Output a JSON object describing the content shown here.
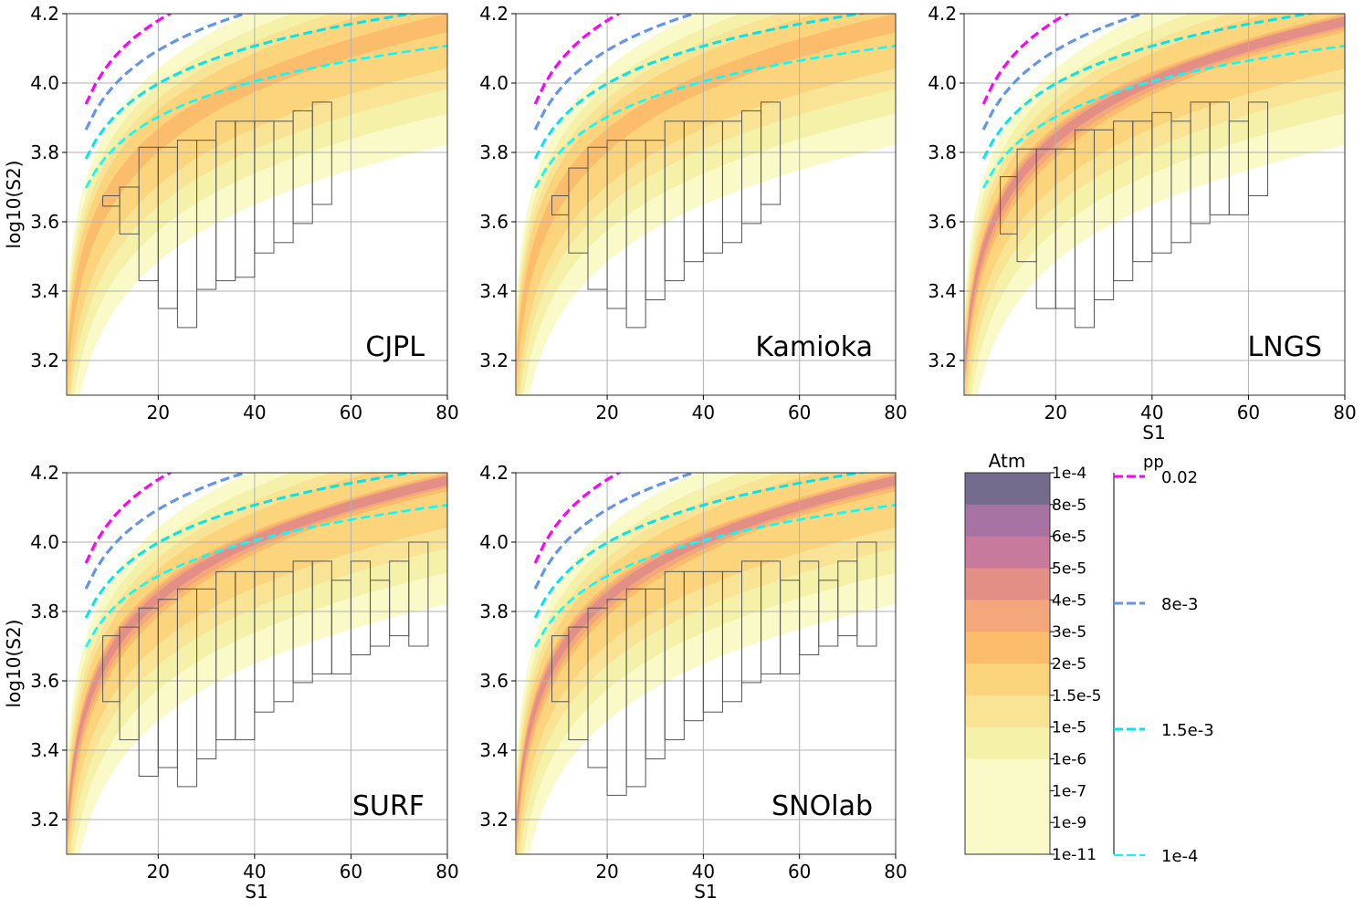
{
  "colors": {
    "contour_fills": [
      "#fafac8",
      "#f5f1a8",
      "#f9e496",
      "#fbd47c",
      "#fbbd6c",
      "#f4a77b",
      "#e48f85",
      "#c77a9c",
      "#a773a2",
      "#756b8c"
    ],
    "pp_lines": [
      "#ff00ff",
      "#6495ed",
      "#00e5ee",
      "#00ffff"
    ],
    "box_stroke": "#555555",
    "grid": "#b0b0b0"
  },
  "colorbar": {
    "title": "Atm",
    "levels": [
      "1e-4",
      "8e-5",
      "6e-5",
      "5e-5",
      "4e-5",
      "3e-5",
      "2e-5",
      "1.5e-5",
      "1e-5",
      "1e-6",
      "1e-7",
      "1e-9",
      "1e-11"
    ]
  },
  "line_legend": {
    "title": "pp",
    "entries": [
      {
        "label": "0.02",
        "color": "#ff00ff",
        "width": "heavy"
      },
      {
        "label": "8e-3",
        "color": "#6495ed",
        "width": "heavy"
      },
      {
        "label": "1.5e-3",
        "color": "#00e5ee",
        "width": "heavy"
      },
      {
        "label": "1e-4",
        "color": "#00ffff",
        "width": "light"
      }
    ]
  },
  "chart_data": [
    {
      "type": "heatmap",
      "panel": "CJPL",
      "xlabel": "",
      "ylabel": "log10(S2)",
      "xlim": [
        1,
        80
      ],
      "ylim": [
        3.1,
        4.2
      ],
      "xticks": [
        "20",
        "40",
        "60",
        "80"
      ],
      "yticks": [
        "3.2",
        "3.4",
        "3.6",
        "3.8",
        "4.0",
        "4.2"
      ],
      "peak_level": 4,
      "boxes": [
        {
          "x0": 8.5,
          "x1": 12.0,
          "y0": 3.645,
          "y1": 3.675
        },
        {
          "x0": 12.0,
          "x1": 16.0,
          "y0": 3.565,
          "y1": 3.7
        },
        {
          "x0": 16.0,
          "x1": 20.0,
          "y0": 3.43,
          "y1": 3.815
        },
        {
          "x0": 20.0,
          "x1": 24.0,
          "y0": 3.35,
          "y1": 3.815
        },
        {
          "x0": 24.0,
          "x1": 28.0,
          "y0": 3.295,
          "y1": 3.835
        },
        {
          "x0": 28.0,
          "x1": 32.0,
          "y0": 3.405,
          "y1": 3.835
        },
        {
          "x0": 32.0,
          "x1": 36.0,
          "y0": 3.43,
          "y1": 3.89
        },
        {
          "x0": 36.0,
          "x1": 40.0,
          "y0": 3.44,
          "y1": 3.89
        },
        {
          "x0": 40.0,
          "x1": 44.0,
          "y0": 3.51,
          "y1": 3.89
        },
        {
          "x0": 44.0,
          "x1": 48.0,
          "y0": 3.54,
          "y1": 3.89
        },
        {
          "x0": 48.0,
          "x1": 52.0,
          "y0": 3.595,
          "y1": 3.92
        },
        {
          "x0": 52.0,
          "x1": 56.0,
          "y0": 3.65,
          "y1": 3.945
        }
      ]
    },
    {
      "type": "heatmap",
      "panel": "Kamioka",
      "xlabel": "",
      "ylabel": "",
      "xlim": [
        1,
        80
      ],
      "ylim": [
        3.1,
        4.2
      ],
      "xticks": [
        "20",
        "40",
        "60",
        "80"
      ],
      "yticks": [
        "3.2",
        "3.4",
        "3.6",
        "3.8",
        "4.0",
        "4.2"
      ],
      "peak_level": 4,
      "boxes": [
        {
          "x0": 8.5,
          "x1": 12.0,
          "y0": 3.62,
          "y1": 3.675
        },
        {
          "x0": 12.0,
          "x1": 16.0,
          "y0": 3.51,
          "y1": 3.755
        },
        {
          "x0": 16.0,
          "x1": 20.0,
          "y0": 3.405,
          "y1": 3.815
        },
        {
          "x0": 20.0,
          "x1": 24.0,
          "y0": 3.35,
          "y1": 3.835
        },
        {
          "x0": 24.0,
          "x1": 28.0,
          "y0": 3.295,
          "y1": 3.835
        },
        {
          "x0": 28.0,
          "x1": 32.0,
          "y0": 3.375,
          "y1": 3.835
        },
        {
          "x0": 32.0,
          "x1": 36.0,
          "y0": 3.43,
          "y1": 3.89
        },
        {
          "x0": 36.0,
          "x1": 40.0,
          "y0": 3.485,
          "y1": 3.89
        },
        {
          "x0": 40.0,
          "x1": 44.0,
          "y0": 3.51,
          "y1": 3.89
        },
        {
          "x0": 44.0,
          "x1": 48.0,
          "y0": 3.54,
          "y1": 3.89
        },
        {
          "x0": 48.0,
          "x1": 52.0,
          "y0": 3.595,
          "y1": 3.92
        },
        {
          "x0": 52.0,
          "x1": 56.0,
          "y0": 3.65,
          "y1": 3.945
        }
      ]
    },
    {
      "type": "heatmap",
      "panel": "LNGS",
      "xlabel": "S1",
      "ylabel": "",
      "xlim": [
        1,
        80
      ],
      "ylim": [
        3.1,
        4.2
      ],
      "xticks": [
        "20",
        "40",
        "60",
        "80"
      ],
      "yticks": [
        "3.2",
        "3.4",
        "3.6",
        "3.8",
        "4.0",
        "4.2"
      ],
      "peak_level": 6,
      "boxes": [
        {
          "x0": 8.5,
          "x1": 12.0,
          "y0": 3.565,
          "y1": 3.73
        },
        {
          "x0": 12.0,
          "x1": 16.0,
          "y0": 3.485,
          "y1": 3.81
        },
        {
          "x0": 16.0,
          "x1": 20.0,
          "y0": 3.35,
          "y1": 3.81
        },
        {
          "x0": 20.0,
          "x1": 24.0,
          "y0": 3.35,
          "y1": 3.81
        },
        {
          "x0": 24.0,
          "x1": 28.0,
          "y0": 3.295,
          "y1": 3.865
        },
        {
          "x0": 28.0,
          "x1": 32.0,
          "y0": 3.375,
          "y1": 3.865
        },
        {
          "x0": 32.0,
          "x1": 36.0,
          "y0": 3.43,
          "y1": 3.89
        },
        {
          "x0": 36.0,
          "x1": 40.0,
          "y0": 3.485,
          "y1": 3.89
        },
        {
          "x0": 40.0,
          "x1": 44.0,
          "y0": 3.51,
          "y1": 3.915
        },
        {
          "x0": 44.0,
          "x1": 48.0,
          "y0": 3.54,
          "y1": 3.89
        },
        {
          "x0": 48.0,
          "x1": 52.0,
          "y0": 3.595,
          "y1": 3.945
        },
        {
          "x0": 52.0,
          "x1": 56.0,
          "y0": 3.62,
          "y1": 3.945
        },
        {
          "x0": 56.0,
          "x1": 60.0,
          "y0": 3.62,
          "y1": 3.89
        },
        {
          "x0": 60.0,
          "x1": 64.0,
          "y0": 3.675,
          "y1": 3.945
        }
      ]
    },
    {
      "type": "heatmap",
      "panel": "SURF",
      "xlabel": "S1",
      "ylabel": "log10(S2)",
      "xlim": [
        1,
        80
      ],
      "ylim": [
        3.1,
        4.2
      ],
      "xticks": [
        "20",
        "40",
        "60",
        "80"
      ],
      "yticks": [
        "3.2",
        "3.4",
        "3.6",
        "3.8",
        "4.0",
        "4.2"
      ],
      "peak_level": 6,
      "boxes": [
        {
          "x0": 8.5,
          "x1": 12.0,
          "y0": 3.54,
          "y1": 3.73
        },
        {
          "x0": 12.0,
          "x1": 16.0,
          "y0": 3.43,
          "y1": 3.755
        },
        {
          "x0": 16.0,
          "x1": 20.0,
          "y0": 3.325,
          "y1": 3.81
        },
        {
          "x0": 20.0,
          "x1": 24.0,
          "y0": 3.35,
          "y1": 3.835
        },
        {
          "x0": 24.0,
          "x1": 28.0,
          "y0": 3.295,
          "y1": 3.865
        },
        {
          "x0": 28.0,
          "x1": 32.0,
          "y0": 3.375,
          "y1": 3.865
        },
        {
          "x0": 32.0,
          "x1": 36.0,
          "y0": 3.43,
          "y1": 3.915
        },
        {
          "x0": 36.0,
          "x1": 40.0,
          "y0": 3.43,
          "y1": 3.915
        },
        {
          "x0": 40.0,
          "x1": 44.0,
          "y0": 3.51,
          "y1": 3.915
        },
        {
          "x0": 44.0,
          "x1": 48.0,
          "y0": 3.54,
          "y1": 3.915
        },
        {
          "x0": 48.0,
          "x1": 52.0,
          "y0": 3.595,
          "y1": 3.945
        },
        {
          "x0": 52.0,
          "x1": 56.0,
          "y0": 3.62,
          "y1": 3.945
        },
        {
          "x0": 56.0,
          "x1": 60.0,
          "y0": 3.62,
          "y1": 3.89
        },
        {
          "x0": 60.0,
          "x1": 64.0,
          "y0": 3.675,
          "y1": 3.945
        },
        {
          "x0": 64.0,
          "x1": 68.0,
          "y0": 3.7,
          "y1": 3.89
        },
        {
          "x0": 68.0,
          "x1": 72.0,
          "y0": 3.73,
          "y1": 3.945
        },
        {
          "x0": 72.0,
          "x1": 76.0,
          "y0": 3.7,
          "y1": 4.0
        }
      ]
    },
    {
      "type": "heatmap",
      "panel": "SNOlab",
      "xlabel": "S1",
      "ylabel": "",
      "xlim": [
        1,
        80
      ],
      "ylim": [
        3.1,
        4.2
      ],
      "xticks": [
        "20",
        "40",
        "60",
        "80"
      ],
      "yticks": [
        "3.2",
        "3.4",
        "3.6",
        "3.8",
        "4.0",
        "4.2"
      ],
      "peak_level": 6,
      "boxes": [
        {
          "x0": 8.5,
          "x1": 12.0,
          "y0": 3.54,
          "y1": 3.73
        },
        {
          "x0": 12.0,
          "x1": 16.0,
          "y0": 3.43,
          "y1": 3.755
        },
        {
          "x0": 16.0,
          "x1": 20.0,
          "y0": 3.35,
          "y1": 3.81
        },
        {
          "x0": 20.0,
          "x1": 24.0,
          "y0": 3.27,
          "y1": 3.835
        },
        {
          "x0": 24.0,
          "x1": 28.0,
          "y0": 3.295,
          "y1": 3.865
        },
        {
          "x0": 28.0,
          "x1": 32.0,
          "y0": 3.375,
          "y1": 3.865
        },
        {
          "x0": 32.0,
          "x1": 36.0,
          "y0": 3.43,
          "y1": 3.915
        },
        {
          "x0": 36.0,
          "x1": 40.0,
          "y0": 3.485,
          "y1": 3.915
        },
        {
          "x0": 40.0,
          "x1": 44.0,
          "y0": 3.51,
          "y1": 3.915
        },
        {
          "x0": 44.0,
          "x1": 48.0,
          "y0": 3.54,
          "y1": 3.915
        },
        {
          "x0": 48.0,
          "x1": 52.0,
          "y0": 3.595,
          "y1": 3.945
        },
        {
          "x0": 52.0,
          "x1": 56.0,
          "y0": 3.62,
          "y1": 3.945
        },
        {
          "x0": 56.0,
          "x1": 60.0,
          "y0": 3.62,
          "y1": 3.89
        },
        {
          "x0": 60.0,
          "x1": 64.0,
          "y0": 3.675,
          "y1": 3.945
        },
        {
          "x0": 64.0,
          "x1": 68.0,
          "y0": 3.7,
          "y1": 3.89
        },
        {
          "x0": 68.0,
          "x1": 72.0,
          "y0": 3.73,
          "y1": 3.945
        },
        {
          "x0": 72.0,
          "x1": 76.0,
          "y0": 3.7,
          "y1": 4.0
        }
      ]
    }
  ]
}
